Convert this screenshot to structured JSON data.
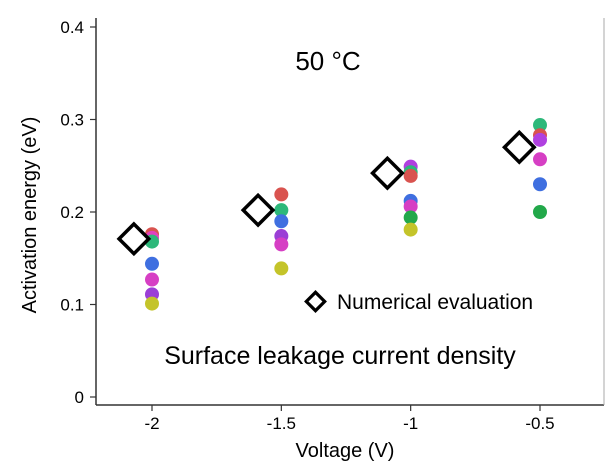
{
  "chart_data": {
    "type": "scatter",
    "title": "",
    "xlabel": "Voltage (V)",
    "ylabel": "Activation energy (eV)",
    "xlim": [
      -2.3,
      -0.3
    ],
    "ylim": [
      0,
      0.4
    ],
    "x_ticks": [
      -2,
      -1.5,
      -1,
      -0.5
    ],
    "x_tick_labels": [
      "-2",
      "-1.5",
      "-1",
      "-0.5"
    ],
    "y_ticks": [
      0,
      0.1,
      0.2,
      0.3,
      0.4
    ],
    "y_tick_labels": [
      "0",
      "0.1",
      "0.2",
      "0.3",
      "0.4"
    ],
    "grid": false,
    "annotations": [
      {
        "text": "50 °C"
      },
      {
        "text": "Surface leakage current density"
      }
    ],
    "legend": {
      "position": "lower-right",
      "entries": [
        {
          "label": "Numerical evaluation",
          "marker": "diamond"
        }
      ]
    },
    "measured_points": [
      {
        "x": -2,
        "y": 0.176,
        "color": "#d9534f"
      },
      {
        "x": -2,
        "y": 0.172,
        "color": "#e040c0"
      },
      {
        "x": -2,
        "y": 0.168,
        "color": "#2db87a"
      },
      {
        "x": -2,
        "y": 0.144,
        "color": "#3f6fe0"
      },
      {
        "x": -2,
        "y": 0.127,
        "color": "#d63fc4"
      },
      {
        "x": -2,
        "y": 0.111,
        "color": "#9b3fd6"
      },
      {
        "x": -2,
        "y": 0.101,
        "color": "#c4c42a"
      },
      {
        "x": -1.5,
        "y": 0.219,
        "color": "#d9534f"
      },
      {
        "x": -1.5,
        "y": 0.202,
        "color": "#2db87a"
      },
      {
        "x": -1.5,
        "y": 0.19,
        "color": "#3f6fe0"
      },
      {
        "x": -1.5,
        "y": 0.174,
        "color": "#9b3fd6"
      },
      {
        "x": -1.5,
        "y": 0.165,
        "color": "#d63fc4"
      },
      {
        "x": -1.5,
        "y": 0.139,
        "color": "#c4c42a"
      },
      {
        "x": -1,
        "y": 0.249,
        "color": "#b040e0"
      },
      {
        "x": -1,
        "y": 0.243,
        "color": "#2db87a"
      },
      {
        "x": -1,
        "y": 0.239,
        "color": "#d9534f"
      },
      {
        "x": -1,
        "y": 0.212,
        "color": "#3f6fe0"
      },
      {
        "x": -1,
        "y": 0.206,
        "color": "#d63fc4"
      },
      {
        "x": -1,
        "y": 0.194,
        "color": "#22a84a"
      },
      {
        "x": -1,
        "y": 0.181,
        "color": "#c4c42a"
      },
      {
        "x": -0.5,
        "y": 0.294,
        "color": "#2db87a"
      },
      {
        "x": -0.5,
        "y": 0.283,
        "color": "#d9534f"
      },
      {
        "x": -0.5,
        "y": 0.278,
        "color": "#b040e0"
      },
      {
        "x": -0.5,
        "y": 0.257,
        "color": "#d63fc4"
      },
      {
        "x": -0.5,
        "y": 0.23,
        "color": "#3f6fe0"
      },
      {
        "x": -0.5,
        "y": 0.2,
        "color": "#22a84a"
      }
    ],
    "numerical_points": [
      {
        "x": -2.07,
        "y": 0.171
      },
      {
        "x": -1.59,
        "y": 0.202
      },
      {
        "x": -1.09,
        "y": 0.242
      },
      {
        "x": -0.58,
        "y": 0.27
      }
    ]
  }
}
